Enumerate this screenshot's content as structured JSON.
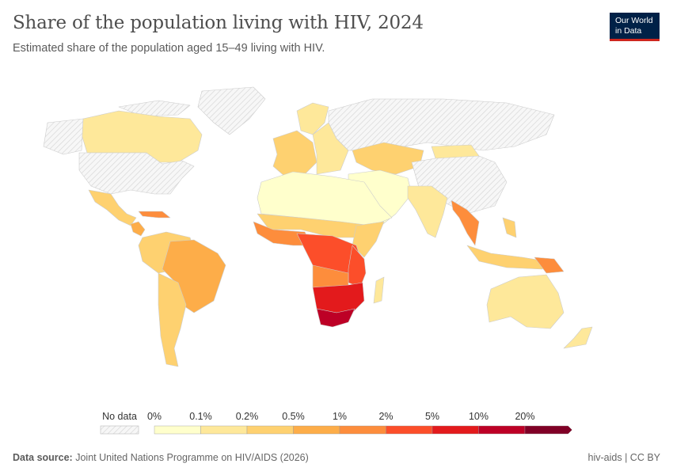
{
  "header": {
    "title": "Share of the population living with HIV, 2024",
    "subtitle": "Estimated share of the population aged 15–49 living with HIV.",
    "logo_line1": "Our World",
    "logo_line2": "in Data"
  },
  "legend": {
    "no_data_label": "No data",
    "ticks": [
      "0%",
      "0.1%",
      "0.2%",
      "0.5%",
      "1%",
      "2%",
      "5%",
      "10%",
      "20%"
    ],
    "bin_colors": [
      "#ffffcc",
      "#fee89a",
      "#fed170",
      "#fdad49",
      "#fd8d3c",
      "#fc4e2a",
      "#e31a1c",
      "#bd0026",
      "#800026"
    ],
    "no_data_color": "#e0e0e0"
  },
  "footer": {
    "source_label": "Data source:",
    "source_text": "Joint United Nations Programme on HIV/AIDS (2026)",
    "right_text": "hiv-aids | CC BY"
  }
}
